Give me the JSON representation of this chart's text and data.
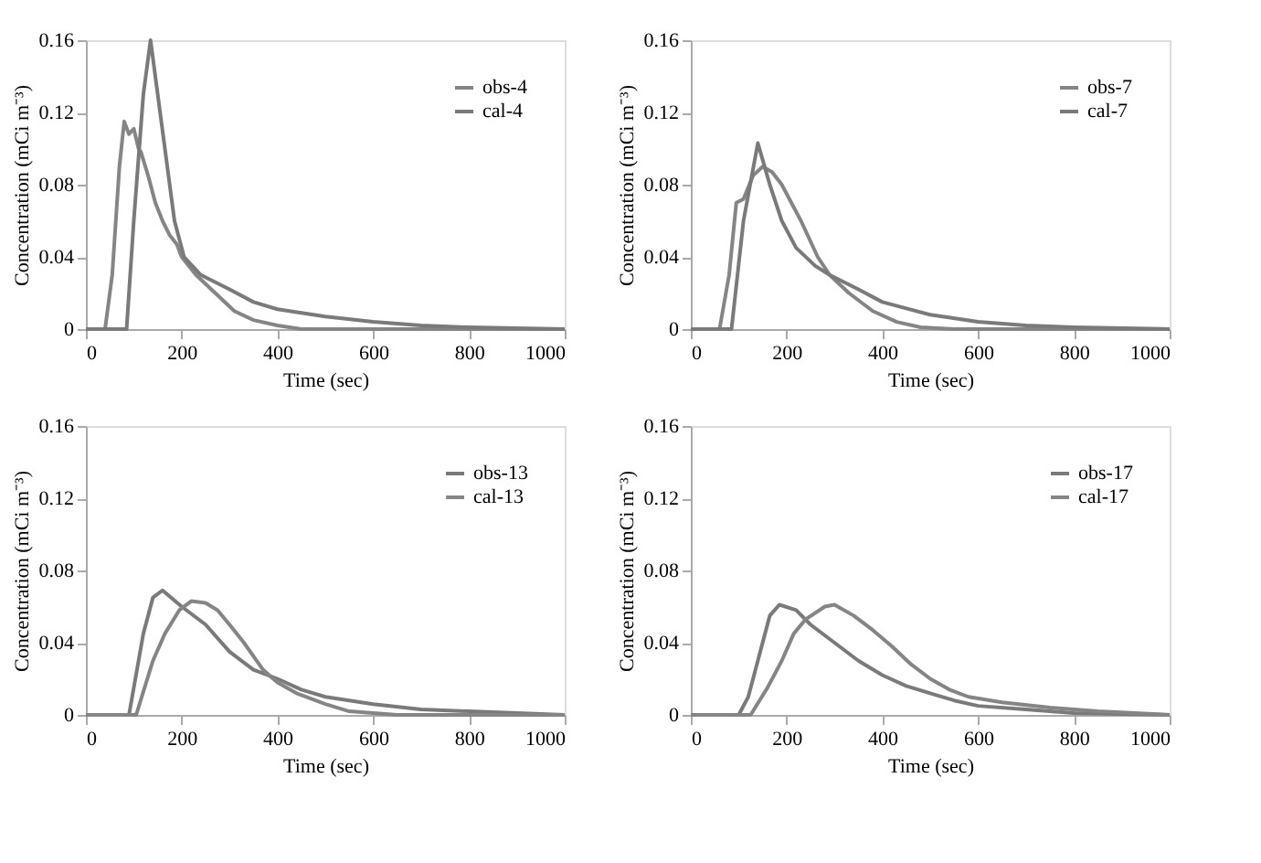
{
  "chart_data": [
    {
      "type": "line",
      "xlabel": "Time (sec)",
      "ylabel": "Concentration (mCi m⁻³)",
      "xlim": [
        0,
        1000
      ],
      "xticks": [
        0,
        200,
        400,
        600,
        800,
        1000
      ],
      "ylim": [
        0,
        0.16
      ],
      "yticks": [
        0,
        0.04,
        0.08,
        0.12,
        0.16
      ],
      "legend": "top right",
      "series": [
        {
          "name": "obs-4",
          "color": "#858585",
          "x": [
            0,
            40,
            55,
            70,
            80,
            90,
            100,
            110,
            115,
            130,
            145,
            160,
            175,
            190,
            200,
            230,
            270,
            310,
            350,
            400,
            450,
            600,
            800,
            1000
          ],
          "values": [
            0,
            0,
            0.03,
            0.09,
            0.115,
            0.108,
            0.111,
            0.1,
            0.098,
            0.085,
            0.07,
            0.06,
            0.052,
            0.047,
            0.04,
            0.03,
            0.02,
            0.01,
            0.005,
            0.002,
            0,
            0,
            0,
            0
          ]
        },
        {
          "name": "cal-4",
          "color": "#7a7a7a",
          "x": [
            0,
            85,
            100,
            120,
            135,
            150,
            165,
            185,
            205,
            240,
            300,
            350,
            400,
            500,
            600,
            700,
            800,
            1000
          ],
          "values": [
            0,
            0,
            0.06,
            0.13,
            0.16,
            0.13,
            0.1,
            0.06,
            0.04,
            0.03,
            0.022,
            0.015,
            0.011,
            0.007,
            0.004,
            0.002,
            0.001,
            0
          ]
        }
      ]
    },
    {
      "type": "line",
      "xlabel": "Time (sec)",
      "ylabel": "Concentration (mCi m⁻³)",
      "xlim": [
        0,
        1000
      ],
      "xticks": [
        0,
        200,
        400,
        600,
        800,
        1000
      ],
      "ylim": [
        0,
        0.16
      ],
      "yticks": [
        0,
        0.04,
        0.08,
        0.12,
        0.16
      ],
      "legend": "top right",
      "series": [
        {
          "name": "obs-7",
          "color": "#858585",
          "x": [
            0,
            60,
            80,
            95,
            110,
            130,
            150,
            170,
            190,
            230,
            265,
            290,
            330,
            380,
            430,
            480,
            550,
            1000
          ],
          "values": [
            0,
            0,
            0.03,
            0.07,
            0.072,
            0.085,
            0.09,
            0.087,
            0.08,
            0.06,
            0.04,
            0.03,
            0.02,
            0.01,
            0.004,
            0.001,
            0,
            0
          ]
        },
        {
          "name": "cal-7",
          "color": "#7a7a7a",
          "x": [
            0,
            85,
            110,
            140,
            165,
            190,
            220,
            260,
            290,
            350,
            400,
            500,
            600,
            700,
            800,
            1000
          ],
          "values": [
            0,
            0,
            0.06,
            0.103,
            0.08,
            0.06,
            0.045,
            0.035,
            0.03,
            0.022,
            0.015,
            0.008,
            0.004,
            0.002,
            0.001,
            0
          ]
        }
      ]
    },
    {
      "type": "line",
      "xlabel": "Time (sec)",
      "ylabel": "Concentration (mCi m⁻³)",
      "xlim": [
        0,
        1000
      ],
      "xticks": [
        0,
        200,
        400,
        600,
        800,
        1000
      ],
      "ylim": [
        0,
        0.16
      ],
      "yticks": [
        0,
        0.04,
        0.08,
        0.12,
        0.16
      ],
      "legend": "top right",
      "series": [
        {
          "name": "obs-13",
          "color": "#7a7a7a",
          "x": [
            0,
            90,
            120,
            140,
            160,
            200,
            250,
            300,
            350,
            400,
            450,
            500,
            600,
            700,
            800,
            900,
            1000
          ],
          "values": [
            0,
            0,
            0.045,
            0.065,
            0.069,
            0.06,
            0.05,
            0.035,
            0.025,
            0.02,
            0.014,
            0.01,
            0.006,
            0.003,
            0.002,
            0.001,
            0
          ]
        },
        {
          "name": "cal-13",
          "color": "#858585",
          "x": [
            0,
            105,
            140,
            165,
            195,
            220,
            250,
            275,
            300,
            330,
            370,
            400,
            440,
            500,
            550,
            650,
            1000
          ],
          "values": [
            0,
            0,
            0.03,
            0.045,
            0.058,
            0.063,
            0.062,
            0.058,
            0.05,
            0.04,
            0.025,
            0.018,
            0.012,
            0.006,
            0.002,
            0,
            0
          ]
        }
      ]
    },
    {
      "type": "line",
      "xlabel": "Time (sec)",
      "ylabel": "Concentration (mCi m⁻³)",
      "xlim": [
        0,
        1000
      ],
      "xticks": [
        0,
        200,
        400,
        600,
        800,
        1000
      ],
      "ylim": [
        0,
        0.16
      ],
      "yticks": [
        0,
        0.04,
        0.08,
        0.12,
        0.16
      ],
      "legend": "top right",
      "series": [
        {
          "name": "obs-17",
          "color": "#7a7a7a",
          "x": [
            0,
            100,
            120,
            140,
            165,
            185,
            220,
            250,
            300,
            350,
            400,
            450,
            500,
            550,
            600,
            700,
            800,
            1000
          ],
          "values": [
            0,
            0,
            0.01,
            0.03,
            0.055,
            0.061,
            0.058,
            0.05,
            0.04,
            0.03,
            0.022,
            0.016,
            0.012,
            0.008,
            0.005,
            0.003,
            0.001,
            0
          ]
        },
        {
          "name": "cal-17",
          "color": "#858585",
          "x": [
            0,
            125,
            160,
            190,
            215,
            240,
            280,
            300,
            340,
            380,
            420,
            460,
            500,
            540,
            580,
            650,
            750,
            850,
            1000
          ],
          "values": [
            0,
            0,
            0.015,
            0.03,
            0.045,
            0.053,
            0.06,
            0.061,
            0.055,
            0.047,
            0.038,
            0.028,
            0.02,
            0.014,
            0.01,
            0.007,
            0.004,
            0.002,
            0
          ]
        }
      ]
    }
  ]
}
